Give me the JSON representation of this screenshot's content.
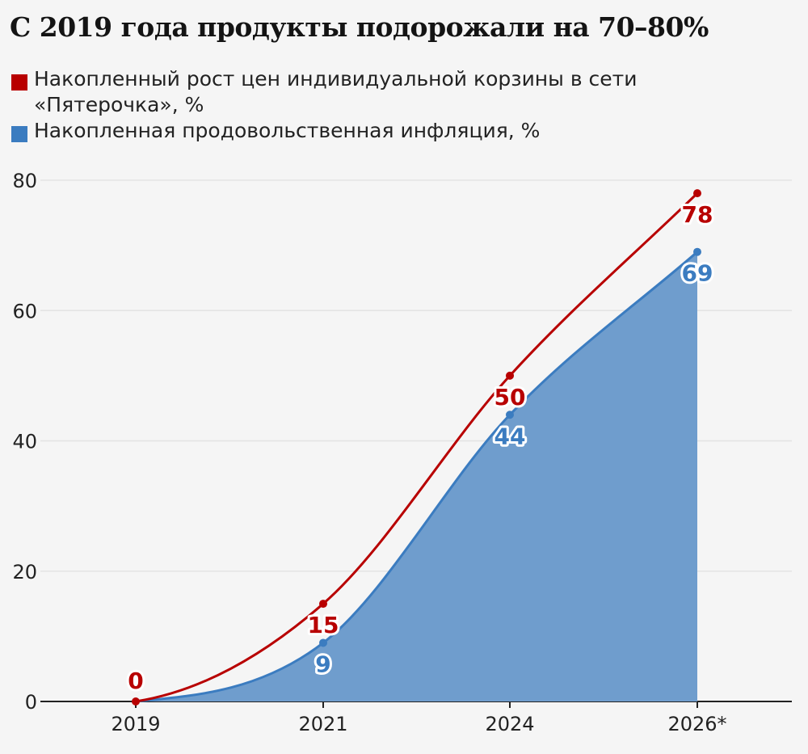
{
  "title": "С 2019 года продукты подорожали на 70–80%",
  "chart_data": {
    "type": "line",
    "categories": [
      "2019",
      "2021",
      "2024",
      "2026*"
    ],
    "series": [
      {
        "name": "Накопленный рост цен индивидуальной корзины в сети «Пятерочка», %",
        "values": [
          0,
          15,
          50,
          78
        ],
        "color": "#b80000",
        "style": "line"
      },
      {
        "name": "Накопленная продовольственная инфляция, %",
        "values": [
          0,
          9,
          44,
          69
        ],
        "color": "#3b7cc0",
        "fill": "#6f9dcd",
        "style": "area"
      }
    ],
    "ylim": [
      0,
      80
    ],
    "yticks": [
      0,
      20,
      40,
      60,
      80
    ],
    "grid": true,
    "legend": "top-left",
    "data_labels": true
  }
}
